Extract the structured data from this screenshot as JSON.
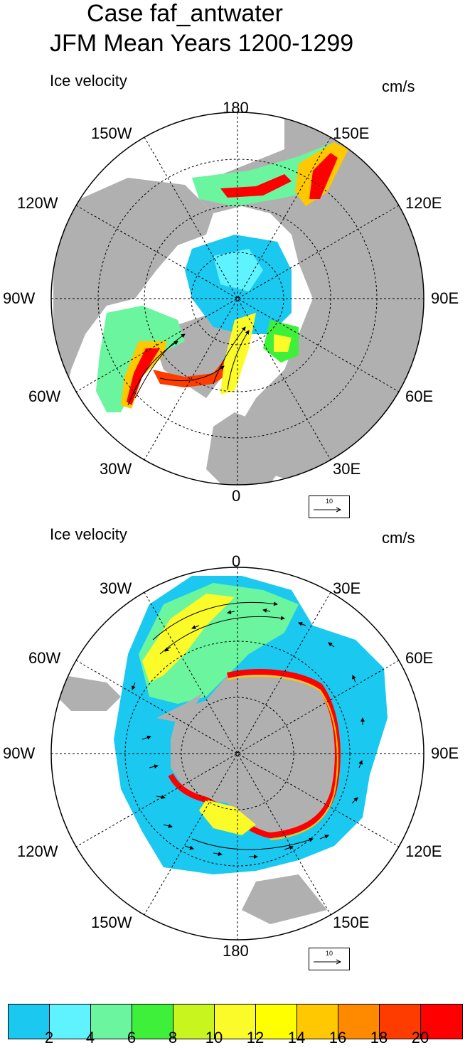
{
  "title": {
    "line1": "Case faf_antwater",
    "line2": "JFM Mean   Years 1200-1299"
  },
  "panels": [
    {
      "name": "arctic",
      "variable_label": "Ice velocity",
      "units_label": "cm/s",
      "longitude_labels": {
        "top": "180",
        "bottom": "0",
        "left": "90W",
        "right": "90E",
        "upper_left_1": "150W",
        "upper_left_2": "120W",
        "lower_left_1": "60W",
        "lower_left_2": "30W",
        "upper_right_1": "150E",
        "upper_right_2": "120E",
        "lower_right_1": "60E",
        "lower_right_2": "30E"
      },
      "reference_vector": "10"
    },
    {
      "name": "antarctic",
      "variable_label": "Ice velocity",
      "units_label": "cm/s",
      "longitude_labels": {
        "top": "0",
        "bottom": "180",
        "left": "90W",
        "right": "90E",
        "upper_left_1": "30W",
        "upper_left_2": "60W",
        "lower_left_1": "120W",
        "lower_left_2": "150W",
        "upper_right_1": "30E",
        "upper_right_2": "60E",
        "lower_right_1": "120E",
        "lower_right_2": "150E"
      },
      "reference_vector": "10"
    }
  ],
  "colorbar": {
    "colors": [
      "#1bc8f0",
      "#5ff3ff",
      "#6bf59e",
      "#3ff03a",
      "#c8f51e",
      "#fbfb2a",
      "#ffff00",
      "#ffc800",
      "#ff8a00",
      "#ff3c00",
      "#ff0000"
    ],
    "tick_labels": [
      "2",
      "4",
      "6",
      "8",
      "10",
      "12",
      "14",
      "16",
      "18",
      "20"
    ]
  },
  "colors": {
    "land": "#b0b0b0",
    "ocean_bg": "#ffffff"
  }
}
